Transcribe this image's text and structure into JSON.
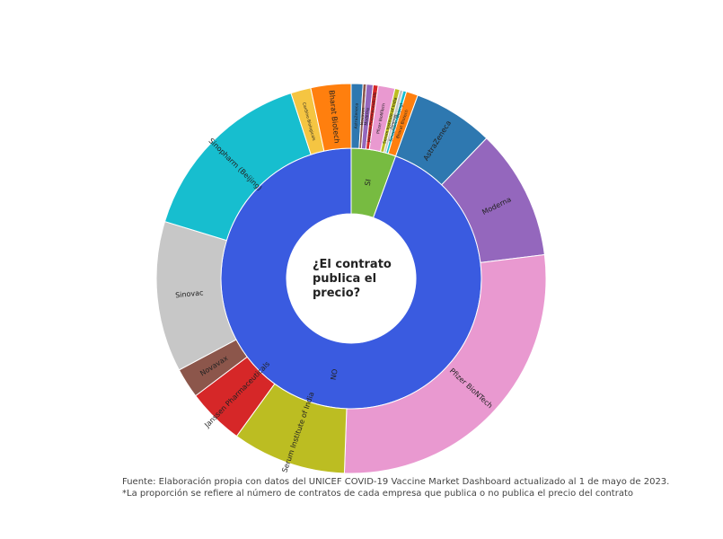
{
  "chart_data": {
    "type": "sunburst",
    "title": "¿El contrato publica el precio?",
    "parents": [
      {
        "label": "SI",
        "value": 20,
        "color": "#77bb41",
        "children": [
          {
            "label": "AstraZeneca",
            "value": 3.5,
            "color": "#2e78b0"
          },
          {
            "label": "Novavax",
            "value": 1,
            "color": "#8c564b"
          },
          {
            "label": "Moderna",
            "value": 2,
            "color": "#9467bd"
          },
          {
            "label": "Janssen Pharmaceuticals",
            "value": 1.5,
            "color": "#d62728"
          },
          {
            "label": "Pfizer BioNTech",
            "value": 5,
            "color": "#e999d0"
          },
          {
            "label": "Serum Institute of India",
            "value": 1.5,
            "color": "#bcbd22"
          },
          {
            "label": "Sinovac",
            "value": 1,
            "color": "#c7c7c7"
          },
          {
            "label": "Sinopharm (Beijing)",
            "value": 1,
            "color": "#17becf"
          },
          {
            "label": "Bharat Biotech",
            "value": 3.5,
            "color": "#ff7f0e"
          }
        ]
      },
      {
        "label": "NO",
        "value": 340,
        "color": "#3a5be0",
        "children": [
          {
            "label": "AstraZeneca",
            "value": 24,
            "color": "#2e78b0"
          },
          {
            "label": "Moderna",
            "value": 39,
            "color": "#9467bd"
          },
          {
            "label": "Pfizer BioNTech",
            "value": 99,
            "color": "#e999d0"
          },
          {
            "label": "Serum Institute of India",
            "value": 34,
            "color": "#bcbd22"
          },
          {
            "label": "Janssen Pharmaceuticals",
            "value": 17,
            "color": "#d62728"
          },
          {
            "label": "Novavax",
            "value": 9,
            "color": "#8c564b"
          },
          {
            "label": "Sinovac",
            "value": 45,
            "color": "#c7c7c7"
          },
          {
            "label": "Sinopharm (Beijing)",
            "value": 55,
            "color": "#17becf"
          },
          {
            "label": "CanSino Biologicals",
            "value": 6,
            "color": "#f5c542"
          },
          {
            "label": "Bharat Biotech",
            "value": 12,
            "color": "#ff7f0e"
          },
          {
            "label": "AstraZeneca",
            "value": 0,
            "color": "#2e78b0"
          }
        ]
      }
    ],
    "notes": [
      "Fuente: Elaboración propia con datos del UNICEF COVID-19 Vaccine Market Dashboard actualizado al 1 de mayo de 2023.",
      "*La proporción se refiere al número de contratos de cada empresa que publica o no publica el precio del contrato"
    ]
  }
}
